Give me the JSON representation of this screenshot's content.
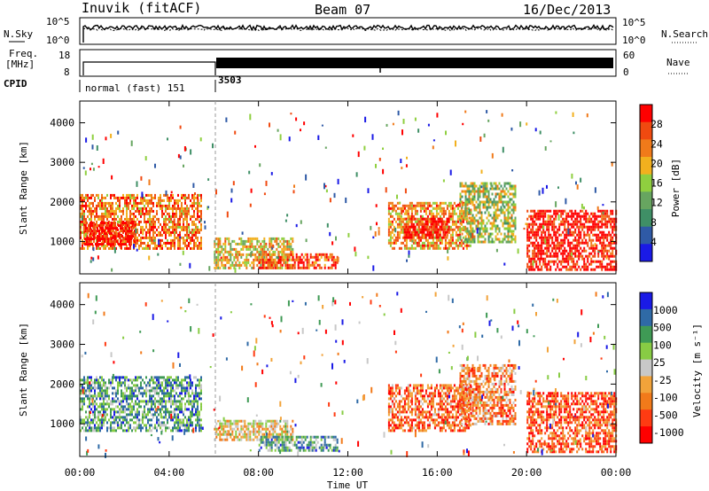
{
  "header": {
    "station": "Inuvik (fitACF)",
    "beam": "Beam 07",
    "date": "16/Dec/2013"
  },
  "top_panels": {
    "nsky_label": "N.Sky",
    "nsearch_label": "N.Search",
    "nsky_ticks": [
      "10^5",
      "10^0"
    ],
    "freq_label_1": "Freq.",
    "freq_label_2": "[MHz]",
    "freq_ticks": [
      "18",
      "8"
    ],
    "nave_label": "Nave",
    "nave_ticks": [
      "60",
      "0"
    ],
    "cpid_label": "CPID",
    "cpid_modes": [
      "normal (fast) 151",
      "3503"
    ]
  },
  "colors": {
    "power_scale": [
      "#1a1ae6",
      "#2f5aa6",
      "#3f8f66",
      "#67a560",
      "#8fcf3f",
      "#f2b01e",
      "#f07a1a",
      "#f04a10",
      "#ff0000"
    ],
    "velocity_scale": [
      "#ff0000",
      "#ff3b12",
      "#f27a1a",
      "#f2a33a",
      "#c8c8c8",
      "#88cc44",
      "#3f9a55",
      "#2f6aa6",
      "#1a1ae6"
    ]
  },
  "chart_data": [
    {
      "type": "heatmap",
      "title": "",
      "xlabel": "Time UT",
      "ylabel": "Slant Range [km]",
      "x_ticks": [
        "00:00",
        "04:00",
        "08:00",
        "12:00",
        "16:00",
        "20:00",
        "00:00"
      ],
      "y_ticks": [
        "1000",
        "2000",
        "3000",
        "4000"
      ],
      "xlim_hours": [
        0,
        24
      ],
      "ylim_km": [
        180,
        4550
      ],
      "colorbar": {
        "label": "Power [dB]",
        "ticks": [
          "28",
          "24",
          "20",
          "16",
          "12",
          "8",
          "4"
        ],
        "range": [
          0,
          30
        ]
      },
      "echo_regions": [
        {
          "t0": 0.0,
          "t1": 5.4,
          "r_lo": 800,
          "r_hi": 2200,
          "level": 0.75
        },
        {
          "t0": 0.2,
          "t1": 2.5,
          "r_lo": 900,
          "r_hi": 1500,
          "level": 0.95
        },
        {
          "t0": 6.0,
          "t1": 9.5,
          "r_lo": 300,
          "r_hi": 1100,
          "level": 0.6
        },
        {
          "t0": 8.0,
          "t1": 11.5,
          "r_lo": 300,
          "r_hi": 700,
          "level": 0.85
        },
        {
          "t0": 13.8,
          "t1": 17.5,
          "r_lo": 800,
          "r_hi": 2000,
          "level": 0.7
        },
        {
          "t0": 14.5,
          "t1": 16.5,
          "r_lo": 1100,
          "r_hi": 1600,
          "level": 0.95
        },
        {
          "t0": 17.0,
          "t1": 19.5,
          "r_lo": 1000,
          "r_hi": 2500,
          "level": 0.5
        },
        {
          "t0": 20.0,
          "t1": 24.0,
          "r_lo": 300,
          "r_hi": 1800,
          "level": 0.95
        }
      ]
    },
    {
      "type": "heatmap",
      "title": "",
      "xlabel": "Time UT",
      "ylabel": "Slant Range [km]",
      "x_ticks": [
        "00:00",
        "04:00",
        "08:00",
        "12:00",
        "16:00",
        "20:00",
        "00:00"
      ],
      "y_ticks": [
        "1000",
        "2000",
        "3000",
        "4000"
      ],
      "xlim_hours": [
        0,
        24
      ],
      "ylim_km": [
        180,
        4550
      ],
      "colorbar": {
        "label": "Velocity [m s⁻¹]",
        "ticks": [
          "1000",
          "500",
          "100",
          "25",
          "-25",
          "-100",
          "-500",
          "-1000"
        ],
        "range": [
          -1000,
          1000
        ]
      },
      "echo_regions": [
        {
          "t0": 0.0,
          "t1": 5.4,
          "r_lo": 800,
          "r_hi": 2200,
          "level": 0.7
        },
        {
          "t0": 6.0,
          "t1": 9.5,
          "r_lo": 600,
          "r_hi": 1100,
          "level": 0.45
        },
        {
          "t0": 8.0,
          "t1": 11.5,
          "r_lo": 300,
          "r_hi": 700,
          "level": 0.7
        },
        {
          "t0": 13.8,
          "t1": 17.5,
          "r_lo": 800,
          "r_hi": 2000,
          "level": 0.25
        },
        {
          "t0": 17.0,
          "t1": 19.5,
          "r_lo": 1000,
          "r_hi": 2500,
          "level": 0.3
        },
        {
          "t0": 20.0,
          "t1": 24.0,
          "r_lo": 300,
          "r_hi": 1800,
          "level": 0.2
        }
      ]
    }
  ]
}
